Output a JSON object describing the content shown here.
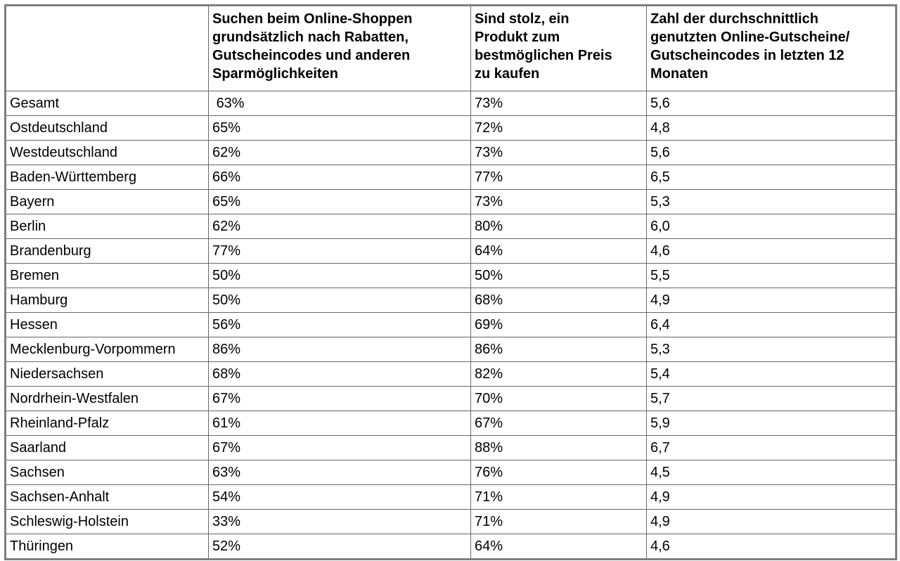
{
  "table": {
    "header": [
      "",
      "Suchen beim Online-Shoppen\ngrundsätzlich nach Rabatten,\nGutscheincodes und anderen\nSparmöglichkeiten",
      "Sind stolz, ein\nProdukt zum\nbestmöglichen Preis\nzu kaufen",
      "Zahl der durchschnittlich\ngenutzten Online-Gutscheine/\nGutscheincodes in letzten 12\nMonaten"
    ],
    "rows": [
      [
        "Gesamt",
        " 63%",
        "73%",
        "5,6"
      ],
      [
        "Ostdeutschland",
        "65%",
        "72%",
        "4,8"
      ],
      [
        "Westdeutschland",
        "62%",
        "73%",
        "5,6"
      ],
      [
        "Baden-Württemberg",
        "66%",
        "77%",
        "6,5"
      ],
      [
        "Bayern",
        "65%",
        "73%",
        "5,3"
      ],
      [
        "Berlin",
        "62%",
        "80%",
        "6,0"
      ],
      [
        "Brandenburg",
        "77%",
        "64%",
        "4,6"
      ],
      [
        "Bremen",
        "50%",
        "50%",
        "5,5"
      ],
      [
        "Hamburg",
        "50%",
        "68%",
        "4,9"
      ],
      [
        "Hessen",
        "56%",
        "69%",
        "6,4"
      ],
      [
        "Mecklenburg-Vorpommern",
        "86%",
        "86%",
        "5,3"
      ],
      [
        "Niedersachsen",
        "68%",
        "82%",
        "5,4"
      ],
      [
        "Nordrhein-Westfalen",
        "67%",
        "70%",
        "5,7"
      ],
      [
        "Rheinland-Pfalz",
        "61%",
        "67%",
        "5,9"
      ],
      [
        "Saarland",
        "67%",
        "88%",
        "6,7"
      ],
      [
        "Sachsen",
        "63%",
        "76%",
        "4,5"
      ],
      [
        "Sachsen-Anhalt",
        "54%",
        "71%",
        "4,9"
      ],
      [
        "Schleswig-Holstein",
        "33%",
        "71%",
        "4,9"
      ],
      [
        "Thüringen",
        "52%",
        "64%",
        "4,6"
      ]
    ]
  },
  "colors": {
    "background": "#ffffff",
    "text": "#000000",
    "border_outer": "#7f7f7f",
    "border_inner": "#666666"
  },
  "chart_data": {
    "type": "table",
    "title": "",
    "categories": [
      "Gesamt",
      "Ostdeutschland",
      "Westdeutschland",
      "Baden-Württemberg",
      "Bayern",
      "Berlin",
      "Brandenburg",
      "Bremen",
      "Hamburg",
      "Hessen",
      "Mecklenburg-Vorpommern",
      "Niedersachsen",
      "Nordrhein-Westfalen",
      "Rheinland-Pfalz",
      "Saarland",
      "Sachsen",
      "Sachsen-Anhalt",
      "Schleswig-Holstein",
      "Thüringen"
    ],
    "series": [
      {
        "name": "Suchen beim Online-Shoppen grundsätzlich nach Rabatten, Gutscheincodes und anderen Sparmöglichkeiten",
        "unit": "%",
        "values": [
          63,
          65,
          62,
          66,
          65,
          62,
          77,
          50,
          50,
          56,
          86,
          68,
          67,
          61,
          67,
          63,
          54,
          33,
          52
        ]
      },
      {
        "name": "Sind stolz, ein Produkt zum bestmöglichen Preis zu kaufen",
        "unit": "%",
        "values": [
          73,
          72,
          73,
          77,
          73,
          80,
          64,
          50,
          68,
          69,
          86,
          82,
          70,
          67,
          88,
          76,
          71,
          71,
          64
        ]
      },
      {
        "name": "Zahl der durchschnittlich genutzten Online-Gutscheine/Gutscheincodes in letzten 12 Monaten",
        "unit": "",
        "values": [
          5.6,
          4.8,
          5.6,
          6.5,
          5.3,
          6.0,
          4.6,
          5.5,
          4.9,
          6.4,
          5.3,
          5.4,
          5.7,
          5.9,
          6.7,
          4.5,
          4.9,
          4.9,
          4.6
        ]
      }
    ]
  }
}
